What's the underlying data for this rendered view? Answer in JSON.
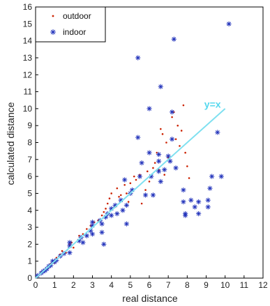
{
  "chart_data": {
    "type": "scatter",
    "xlabel": "real distance",
    "ylabel": "calculated distance",
    "xlim": [
      0,
      12
    ],
    "ylim": [
      0,
      16
    ],
    "xticks": [
      "0",
      "1",
      "2",
      "3",
      "4",
      "5",
      "6",
      "7",
      "8",
      "9",
      "10",
      "11",
      "12"
    ],
    "yticks": [
      "0",
      "1",
      "2",
      "3",
      "4",
      "5",
      "6",
      "7",
      "8",
      "9",
      "10",
      "11",
      "12",
      "13",
      "14",
      "15",
      "16"
    ],
    "grid": false,
    "legend_position": "top-left",
    "colors": {
      "outdoor": "#cc2200",
      "indoor": "#2233bb",
      "reference_line": "#7fe0f0"
    },
    "reference_line": {
      "label": "y=x",
      "x": [
        0,
        10
      ],
      "y": [
        0,
        10
      ]
    },
    "series": [
      {
        "name": "outdoor",
        "marker": "dot",
        "points": [
          [
            0.1,
            0.1
          ],
          [
            0.2,
            0.2
          ],
          [
            0.3,
            0.35
          ],
          [
            0.5,
            0.5
          ],
          [
            0.6,
            0.55
          ],
          [
            0.8,
            0.85
          ],
          [
            1.0,
            0.9
          ],
          [
            1.1,
            1.2
          ],
          [
            1.3,
            1.4
          ],
          [
            1.4,
            1.6
          ],
          [
            1.6,
            1.5
          ],
          [
            1.8,
            2.0
          ],
          [
            1.9,
            2.1
          ],
          [
            2.0,
            1.8
          ],
          [
            2.3,
            2.5
          ],
          [
            2.5,
            2.6
          ],
          [
            2.7,
            2.9
          ],
          [
            2.9,
            3.1
          ],
          [
            3.1,
            3.3
          ],
          [
            3.3,
            3.4
          ],
          [
            3.5,
            3.7
          ],
          [
            3.6,
            3.9
          ],
          [
            3.7,
            4.1
          ],
          [
            3.8,
            4.4
          ],
          [
            3.9,
            4.7
          ],
          [
            4.0,
            5.0
          ],
          [
            4.2,
            4.2
          ],
          [
            4.3,
            5.3
          ],
          [
            4.4,
            4.8
          ],
          [
            4.5,
            4.9
          ],
          [
            4.7,
            5.5
          ],
          [
            4.8,
            5.0
          ],
          [
            4.9,
            4.5
          ],
          [
            5.0,
            5.6
          ],
          [
            5.2,
            6.0
          ],
          [
            5.3,
            5.8
          ],
          [
            5.5,
            6.1
          ],
          [
            5.6,
            4.4
          ],
          [
            5.8,
            5.2
          ],
          [
            5.9,
            6.3
          ],
          [
            6.0,
            5.7
          ],
          [
            6.2,
            6.5
          ],
          [
            6.3,
            6.8
          ],
          [
            6.4,
            7.4
          ],
          [
            6.5,
            6.4
          ],
          [
            6.6,
            8.8
          ],
          [
            6.7,
            8.5
          ],
          [
            6.8,
            6.1
          ],
          [
            6.9,
            8.0
          ],
          [
            7.0,
            7.1
          ],
          [
            7.1,
            6.9
          ],
          [
            7.2,
            9.5
          ],
          [
            7.3,
            9.8
          ],
          [
            7.4,
            8.2
          ],
          [
            7.5,
            9.0
          ],
          [
            7.6,
            7.8
          ],
          [
            7.7,
            8.7
          ],
          [
            7.8,
            10.2
          ],
          [
            7.9,
            7.4
          ],
          [
            8.0,
            6.6
          ],
          [
            8.1,
            5.9
          ]
        ]
      },
      {
        "name": "indoor",
        "marker": "asterisk",
        "points": [
          [
            0.1,
            0.15
          ],
          [
            0.3,
            0.3
          ],
          [
            0.4,
            0.4
          ],
          [
            0.5,
            0.45
          ],
          [
            0.6,
            0.55
          ],
          [
            0.7,
            0.7
          ],
          [
            0.8,
            0.75
          ],
          [
            0.9,
            1.0
          ],
          [
            1.0,
            0.95
          ],
          [
            1.1,
            1.05
          ],
          [
            1.3,
            1.3
          ],
          [
            1.5,
            1.45
          ],
          [
            1.8,
            1.5
          ],
          [
            1.8,
            1.9
          ],
          [
            1.8,
            2.1
          ],
          [
            2.3,
            2.2
          ],
          [
            2.4,
            2.4
          ],
          [
            2.5,
            2.1
          ],
          [
            2.7,
            2.5
          ],
          [
            2.9,
            2.8
          ],
          [
            3.0,
            2.6
          ],
          [
            3.0,
            3.1
          ],
          [
            3.0,
            3.3
          ],
          [
            3.4,
            3.4
          ],
          [
            3.5,
            3.2
          ],
          [
            3.5,
            2.7
          ],
          [
            3.6,
            2.0
          ],
          [
            3.7,
            3.6
          ],
          [
            3.8,
            3.8
          ],
          [
            4.0,
            3.7
          ],
          [
            4.0,
            4.1
          ],
          [
            4.2,
            4.3
          ],
          [
            4.3,
            3.8
          ],
          [
            4.5,
            4.6
          ],
          [
            4.6,
            4.0
          ],
          [
            4.7,
            5.8
          ],
          [
            4.8,
            4.3
          ],
          [
            4.8,
            3.2
          ],
          [
            5.0,
            5.0
          ],
          [
            5.1,
            5.2
          ],
          [
            5.4,
            13.0
          ],
          [
            5.4,
            8.3
          ],
          [
            5.5,
            6.0
          ],
          [
            5.6,
            6.8
          ],
          [
            5.8,
            4.9
          ],
          [
            6.0,
            7.4
          ],
          [
            6.0,
            10.0
          ],
          [
            6.1,
            6.0
          ],
          [
            6.2,
            4.9
          ],
          [
            6.5,
            6.3
          ],
          [
            6.5,
            6.9
          ],
          [
            6.5,
            7.3
          ],
          [
            6.6,
            5.7
          ],
          [
            6.6,
            11.3
          ],
          [
            6.8,
            6.4
          ],
          [
            7.0,
            7.2
          ],
          [
            7.1,
            6.9
          ],
          [
            7.2,
            8.2
          ],
          [
            7.2,
            9.8
          ],
          [
            7.3,
            14.1
          ],
          [
            7.4,
            6.5
          ],
          [
            7.8,
            5.2
          ],
          [
            7.8,
            4.5
          ],
          [
            7.9,
            3.7
          ],
          [
            7.9,
            3.8
          ],
          [
            8.2,
            4.6
          ],
          [
            8.4,
            4.2
          ],
          [
            8.6,
            4.5
          ],
          [
            8.6,
            3.8
          ],
          [
            9.1,
            4.2
          ],
          [
            9.1,
            4.6
          ],
          [
            9.2,
            5.3
          ],
          [
            9.3,
            6.0
          ],
          [
            9.6,
            8.6
          ],
          [
            9.8,
            6.0
          ],
          [
            10.2,
            15.0
          ]
        ]
      }
    ]
  }
}
